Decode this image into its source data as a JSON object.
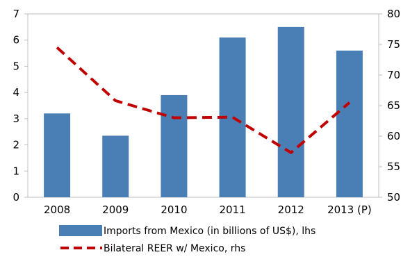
{
  "chart_data": {
    "type": "bar",
    "categories": [
      "2008",
      "2009",
      "2010",
      "2011",
      "2012",
      "2013 (P)"
    ],
    "series": [
      {
        "name": "Imports from Mexico (in billions of US$), lhs",
        "kind": "bar",
        "axis": "left",
        "color": "#4a7fb5",
        "values": [
          3.2,
          2.35,
          3.9,
          6.1,
          6.5,
          5.6
        ]
      },
      {
        "name": "Bilateral REER w/ Mexico, rhs",
        "kind": "line",
        "style": "dashed",
        "axis": "right",
        "color": "#c00000",
        "values": [
          74.5,
          65.8,
          63.0,
          63.1,
          57.3,
          65.5
        ]
      }
    ],
    "ylim_left": [
      0,
      7
    ],
    "yticks_left": [
      0,
      1,
      2,
      3,
      4,
      5,
      6,
      7
    ],
    "ylim_right": [
      50,
      80
    ],
    "yticks_right": [
      50,
      55,
      60,
      65,
      70,
      75,
      80
    ],
    "grid": false,
    "legend_position": "bottom"
  }
}
